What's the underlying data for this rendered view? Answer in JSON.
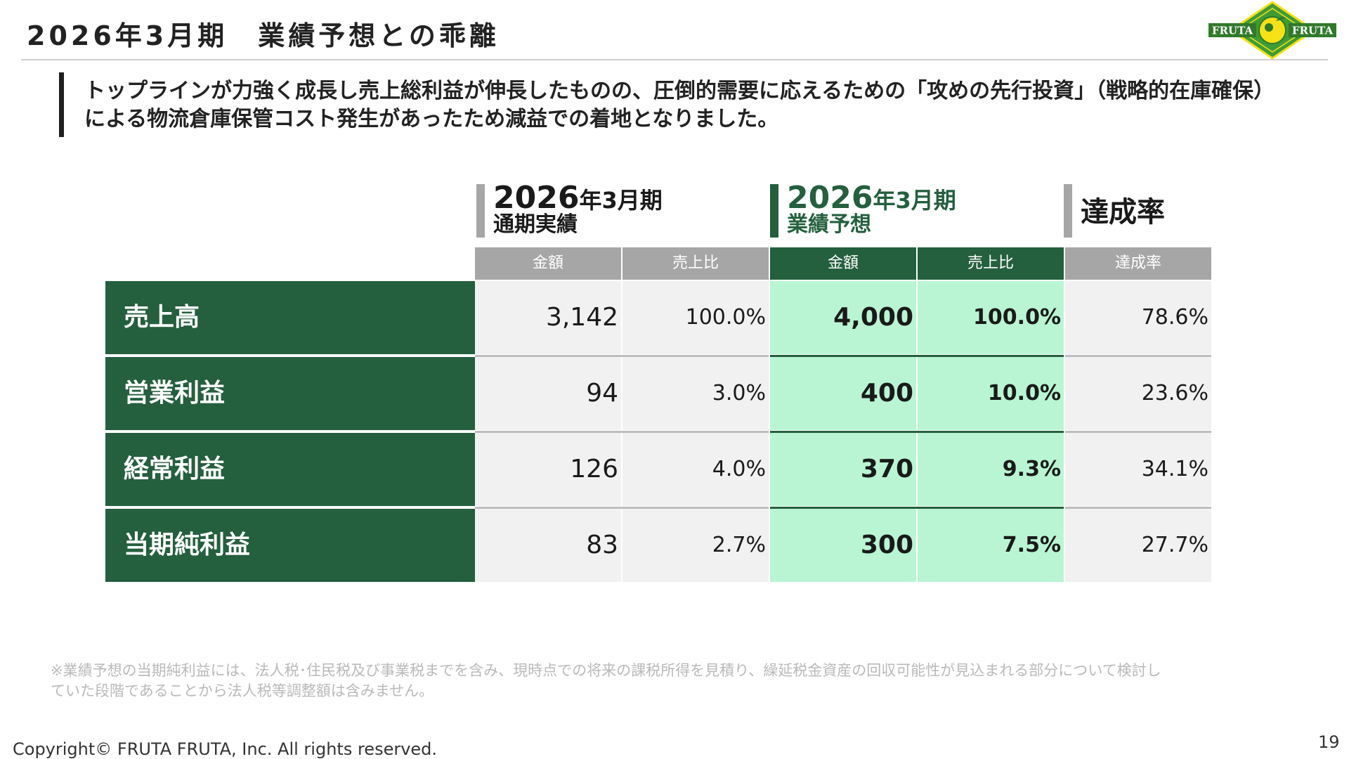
{
  "title": "2026年3月期　業績予想との乖離",
  "logo": {
    "left": "FRUTA",
    "right": "FRUTA"
  },
  "lead": [
    "トップラインが力強く成長し売上総利益が伸長したものの、圧倒的需要に応えるための「攻めの先行投資」（戦略的在庫確保）",
    "による物流倉庫保管コスト発生があったため減益での着地となりました。"
  ],
  "blocks": {
    "actual": {
      "year": "2026",
      "suffix": "年3月期",
      "sub": "通期実績"
    },
    "forecast": {
      "year": "2026",
      "suffix": "年3月期",
      "sub": "業績予想"
    },
    "rate": {
      "label": "達成率"
    }
  },
  "columns": {
    "actual_amount": "金額",
    "actual_ratio": "売上比",
    "forecast_amount": "金額",
    "forecast_ratio": "売上比",
    "rate": "達成率"
  },
  "rows": [
    {
      "label": "売上高",
      "actual_amount": "3,142",
      "actual_ratio": "100.0%",
      "forecast_amount": "4,000",
      "forecast_ratio": "100.0%",
      "rate": "78.6%"
    },
    {
      "label": "営業利益",
      "actual_amount": "94",
      "actual_ratio": "3.0%",
      "forecast_amount": "400",
      "forecast_ratio": "10.0%",
      "rate": "23.6%"
    },
    {
      "label": "経常利益",
      "actual_amount": "126",
      "actual_ratio": "4.0%",
      "forecast_amount": "370",
      "forecast_ratio": "9.3%",
      "rate": "34.1%"
    },
    {
      "label": "当期純利益",
      "actual_amount": "83",
      "actual_ratio": "2.7%",
      "forecast_amount": "300",
      "forecast_ratio": "7.5%",
      "rate": "27.7%"
    }
  ],
  "note": [
    "※業績予想の当期純利益には、法人税･住民税及び事業税までを含み、現時点での将来の課税所得を見積り、繰延税金資産の回収可能性が見込まれる部分について検討し",
    "ていた段階であることから法人税等調整額は含みません。"
  ],
  "copyright": "Copyright© FRUTA FRUTA, Inc. All rights reserved.",
  "page_number": "19",
  "colors": {
    "label_green": "#245f3e",
    "forecast_header_green": "#245f3e",
    "forecast_cell_mint": "#b9f5d3",
    "actual_header_gray": "#a6a6a6",
    "actual_cell_gray": "#f1f1f1"
  }
}
